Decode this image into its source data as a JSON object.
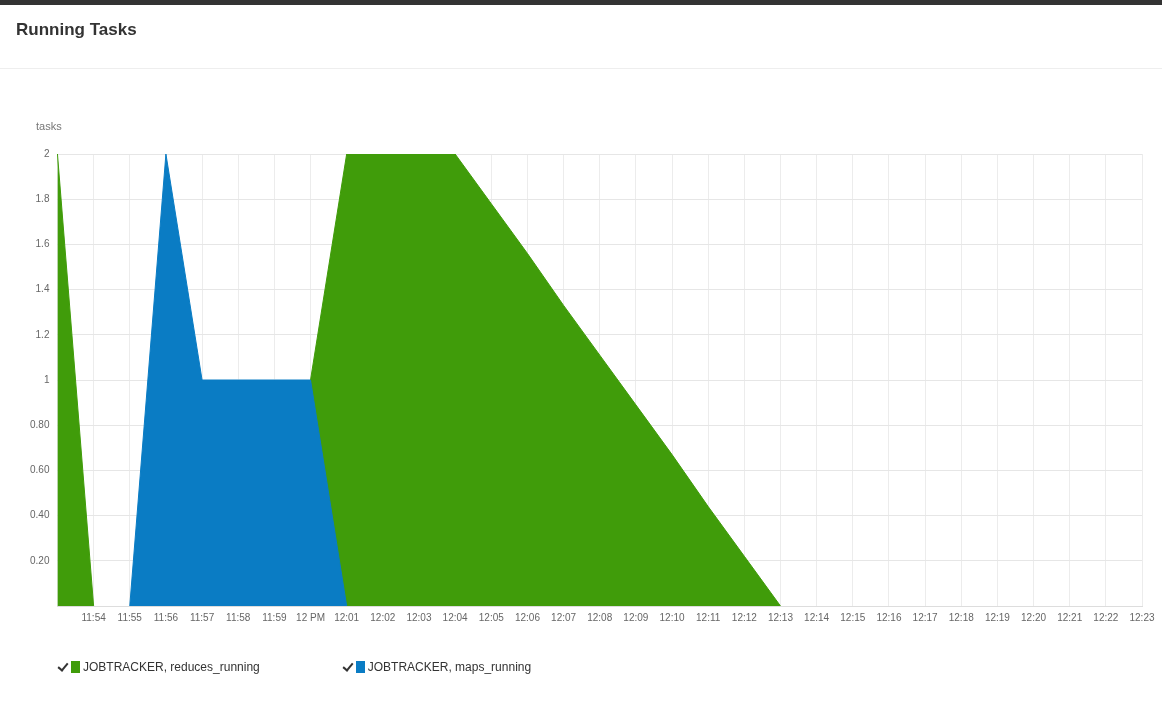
{
  "chart_data": {
    "type": "area",
    "title": "Running Tasks",
    "ylabel": "tasks",
    "categories": [
      null,
      "11:54",
      "11:55",
      "11:56",
      "11:57",
      "11:58",
      "11:59",
      "12 PM",
      "12:01",
      "12:02",
      "12:03",
      "12:04",
      "12:05",
      "12:06",
      "12:07",
      "12:08",
      "12:09",
      "12:10",
      "12:11",
      "12:12",
      "12:13",
      "12:14",
      "12:15",
      "12:16",
      "12:17",
      "12:18",
      "12:19",
      "12:20",
      "12:21",
      "12:22",
      "12:23"
    ],
    "series": [
      {
        "name": "JOBTRACKER, reduces_running",
        "color": "#409c0a",
        "values": [
          2,
          0,
          null,
          null,
          null,
          null,
          null,
          1,
          2,
          2,
          2,
          2,
          1.78,
          1.56,
          1.33,
          1.11,
          0.89,
          0.67,
          0.44,
          0.22,
          0,
          null,
          null,
          null,
          null,
          null,
          null,
          null,
          null,
          null,
          null
        ]
      },
      {
        "name": "JOBTRACKER, maps_running",
        "color": "#0a7cc4",
        "values": [
          null,
          null,
          0,
          2,
          1,
          1,
          1,
          1,
          0,
          null,
          null,
          null,
          null,
          null,
          null,
          null,
          null,
          null,
          null,
          null,
          null,
          null,
          null,
          null,
          null,
          null,
          null,
          null,
          null,
          null,
          null
        ]
      }
    ],
    "ylim": [
      0,
      2
    ],
    "yticks": [
      {
        "value": 0,
        "label": null
      },
      {
        "value": 0.2,
        "label": "0.20"
      },
      {
        "value": 0.4,
        "label": "0.40"
      },
      {
        "value": 0.6,
        "label": "0.60"
      },
      {
        "value": 0.8,
        "label": "0.80"
      },
      1,
      1.2,
      1.4,
      1.6,
      1.8,
      2
    ],
    "grid": true,
    "legend": "bottom left"
  }
}
